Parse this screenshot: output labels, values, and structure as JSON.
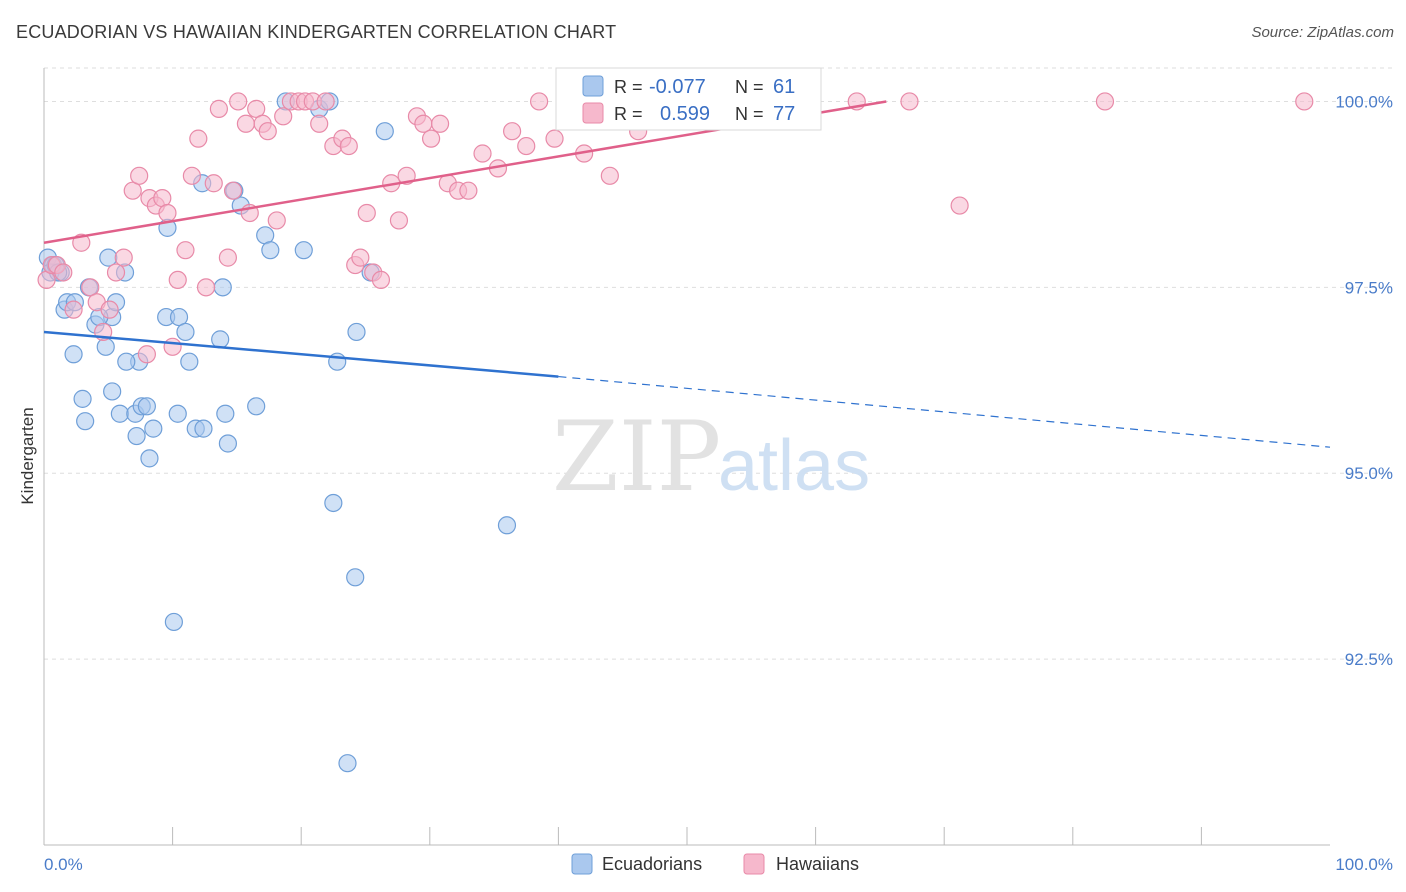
{
  "title": "ECUADORIAN VS HAWAIIAN KINDERGARTEN CORRELATION CHART",
  "source": "Source: ZipAtlas.com",
  "watermark": {
    "zip": "ZIP",
    "atlas": "atlas"
  },
  "colors": {
    "blue_fill": "#aac8ee",
    "blue_stroke": "#6f9fd8",
    "blue_line": "#2f72cf",
    "pink_fill": "#f6b8cc",
    "pink_stroke": "#e88aa8",
    "pink_line": "#e0608a",
    "grid": "#dedede",
    "axis": "#bbbbbb",
    "tick_text": "#4a7cc9"
  },
  "legend_top": {
    "rows": [
      {
        "r_label": "R =",
        "r_value": "-0.077",
        "n_label": "N =",
        "n_value": "61",
        "series": "Ecuadorians"
      },
      {
        "r_label": "R =",
        "r_value": "0.599",
        "n_label": "N =",
        "n_value": "77",
        "series": "Hawaiians"
      }
    ]
  },
  "legend_bottom": [
    "Ecuadorians",
    "Hawaiians"
  ],
  "chart_data": {
    "type": "scatter",
    "title": "ECUADORIAN VS HAWAIIAN KINDERGARTEN CORRELATION CHART",
    "xlabel": "",
    "ylabel": "Kindergarten",
    "xlim": [
      0,
      100
    ],
    "ylim": [
      90.0,
      100.45
    ],
    "x_tick_labels": [
      "0.0%",
      "100.0%"
    ],
    "y_ticks": [
      100.0,
      97.5,
      95.0,
      92.5
    ],
    "y_tick_labels": [
      "100.0%",
      "97.5%",
      "95.0%",
      "92.5%"
    ],
    "legend": "top-center",
    "series": [
      {
        "name": "Ecuadorians",
        "R": -0.077,
        "N": 61,
        "trend": {
          "x0": 0,
          "y0": 96.9,
          "x1": 40,
          "y1": 96.3,
          "x_dash_end": 100,
          "y_dash_end": 95.35
        },
        "points": [
          [
            0.3,
            97.9
          ],
          [
            0.7,
            97.8
          ],
          [
            1.3,
            97.7
          ],
          [
            0.5,
            97.7
          ],
          [
            0.9,
            97.8
          ],
          [
            1.6,
            97.2
          ],
          [
            1.8,
            97.3
          ],
          [
            2.4,
            97.3
          ],
          [
            3.5,
            97.5
          ],
          [
            5.0,
            97.9
          ],
          [
            5.3,
            97.1
          ],
          [
            5.6,
            97.3
          ],
          [
            6.3,
            97.7
          ],
          [
            4.0,
            97.0
          ],
          [
            4.3,
            97.1
          ],
          [
            2.3,
            96.6
          ],
          [
            3.0,
            96.0
          ],
          [
            3.2,
            95.7
          ],
          [
            4.8,
            96.7
          ],
          [
            5.3,
            96.1
          ],
          [
            5.9,
            95.8
          ],
          [
            7.1,
            95.8
          ],
          [
            7.6,
            95.9
          ],
          [
            8.0,
            95.9
          ],
          [
            7.4,
            96.5
          ],
          [
            6.4,
            96.5
          ],
          [
            7.2,
            95.5
          ],
          [
            8.2,
            95.2
          ],
          [
            8.5,
            95.6
          ],
          [
            9.5,
            97.1
          ],
          [
            10.5,
            97.1
          ],
          [
            11.0,
            96.9
          ],
          [
            11.3,
            96.5
          ],
          [
            10.4,
            95.8
          ],
          [
            11.8,
            95.6
          ],
          [
            12.4,
            95.6
          ],
          [
            13.7,
            96.8
          ],
          [
            14.1,
            95.8
          ],
          [
            14.3,
            95.4
          ],
          [
            13.9,
            97.5
          ],
          [
            14.8,
            98.8
          ],
          [
            15.3,
            98.6
          ],
          [
            17.2,
            98.2
          ],
          [
            17.6,
            98.0
          ],
          [
            16.5,
            95.9
          ],
          [
            9.6,
            98.3
          ],
          [
            12.3,
            98.9
          ],
          [
            20.2,
            98.0
          ],
          [
            18.8,
            100.0
          ],
          [
            21.4,
            99.9
          ],
          [
            22.2,
            100.0
          ],
          [
            26.5,
            99.6
          ],
          [
            22.8,
            96.5
          ],
          [
            22.5,
            94.6
          ],
          [
            24.2,
            93.6
          ],
          [
            23.6,
            91.1
          ],
          [
            25.4,
            97.7
          ],
          [
            24.3,
            96.9
          ],
          [
            10.1,
            93.0
          ],
          [
            36.0,
            94.3
          ],
          [
            1.1,
            97.7
          ]
        ]
      },
      {
        "name": "Hawaiians",
        "R": 0.599,
        "N": 77,
        "trend": {
          "x0": 0,
          "y0": 98.1,
          "x1": 65.5,
          "y1": 100.0
        },
        "points": [
          [
            0.2,
            97.6
          ],
          [
            0.6,
            97.8
          ],
          [
            1.0,
            97.8
          ],
          [
            1.5,
            97.7
          ],
          [
            2.3,
            97.2
          ],
          [
            2.9,
            98.1
          ],
          [
            3.6,
            97.5
          ],
          [
            4.1,
            97.3
          ],
          [
            4.6,
            96.9
          ],
          [
            5.1,
            97.2
          ],
          [
            5.6,
            97.7
          ],
          [
            6.2,
            97.9
          ],
          [
            6.9,
            98.8
          ],
          [
            7.4,
            99.0
          ],
          [
            8.2,
            98.7
          ],
          [
            8.7,
            98.6
          ],
          [
            9.2,
            98.7
          ],
          [
            9.6,
            98.5
          ],
          [
            10.0,
            96.7
          ],
          [
            10.4,
            97.6
          ],
          [
            11.0,
            98.0
          ],
          [
            11.5,
            99.0
          ],
          [
            12.0,
            99.5
          ],
          [
            12.6,
            97.5
          ],
          [
            13.2,
            98.9
          ],
          [
            13.6,
            99.9
          ],
          [
            14.3,
            97.9
          ],
          [
            14.7,
            98.8
          ],
          [
            15.1,
            100.0
          ],
          [
            15.7,
            99.7
          ],
          [
            16.0,
            98.5
          ],
          [
            16.5,
            99.9
          ],
          [
            17.0,
            99.7
          ],
          [
            17.4,
            99.6
          ],
          [
            18.1,
            98.4
          ],
          [
            18.6,
            99.8
          ],
          [
            19.2,
            100.0
          ],
          [
            19.8,
            100.0
          ],
          [
            20.3,
            100.0
          ],
          [
            20.9,
            100.0
          ],
          [
            21.4,
            99.7
          ],
          [
            21.9,
            100.0
          ],
          [
            22.5,
            99.4
          ],
          [
            23.2,
            99.5
          ],
          [
            23.7,
            99.4
          ],
          [
            24.2,
            97.8
          ],
          [
            24.6,
            97.9
          ],
          [
            25.1,
            98.5
          ],
          [
            25.6,
            97.7
          ],
          [
            26.2,
            97.6
          ],
          [
            27.0,
            98.9
          ],
          [
            27.6,
            98.4
          ],
          [
            28.2,
            99.0
          ],
          [
            29.0,
            99.8
          ],
          [
            29.5,
            99.7
          ],
          [
            30.1,
            99.5
          ],
          [
            30.8,
            99.7
          ],
          [
            31.4,
            98.9
          ],
          [
            32.2,
            98.8
          ],
          [
            33.0,
            98.8
          ],
          [
            34.1,
            99.3
          ],
          [
            35.3,
            99.1
          ],
          [
            36.4,
            99.6
          ],
          [
            37.5,
            99.4
          ],
          [
            38.5,
            100.0
          ],
          [
            39.7,
            99.5
          ],
          [
            42.0,
            99.3
          ],
          [
            44.0,
            99.0
          ],
          [
            46.2,
            99.6
          ],
          [
            47.1,
            99.8
          ],
          [
            53.3,
            100.0
          ],
          [
            63.2,
            100.0
          ],
          [
            67.3,
            100.0
          ],
          [
            71.2,
            98.6
          ],
          [
            82.5,
            100.0
          ],
          [
            98.0,
            100.0
          ],
          [
            8.0,
            96.6
          ]
        ]
      }
    ]
  }
}
